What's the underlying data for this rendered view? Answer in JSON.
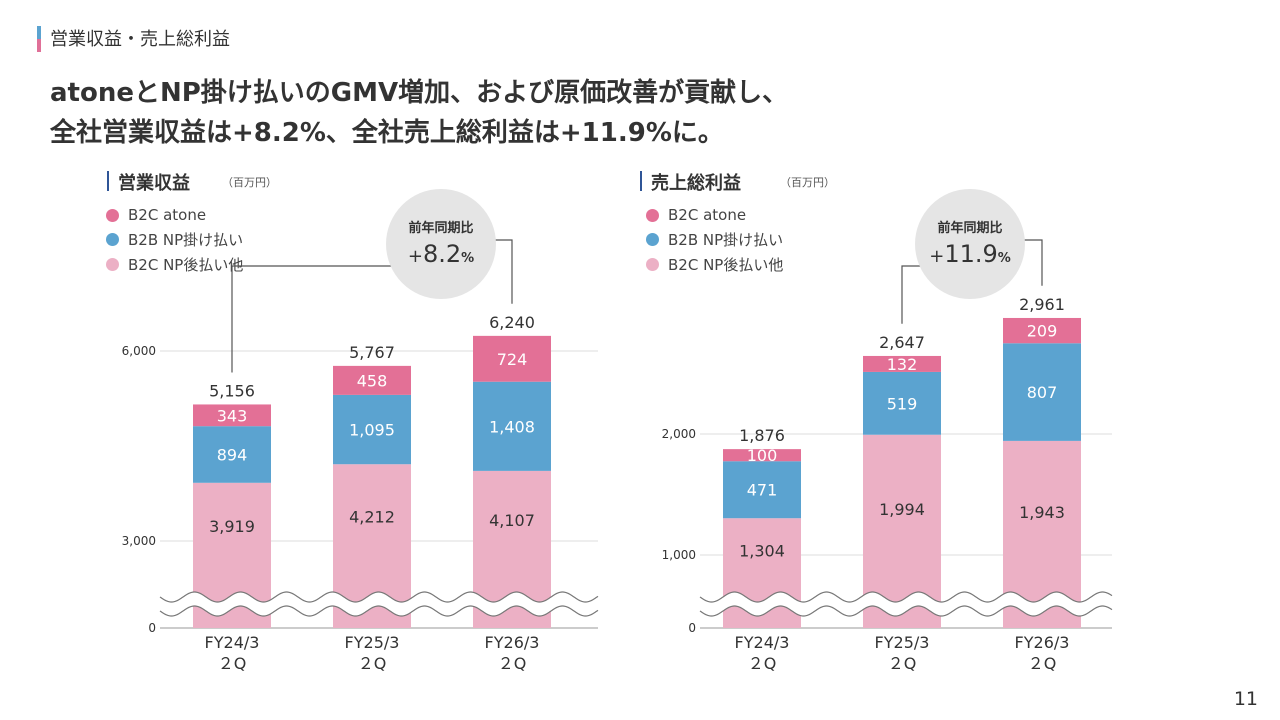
{
  "header": {
    "section_title": "営業収益・売上総利益",
    "headline_line1": "atoneとNP掛け払いのGMV増加、および原価改善が貢献し、",
    "headline_line2": "全社営業収益は+8.2%、全社売上総利益は+11.9%に。"
  },
  "page_number": "11",
  "colors": {
    "atone": "#e37096",
    "np_b2b": "#5ba3d0",
    "np_b2c": "#ecb0c5",
    "title_bar": "#2f5597"
  },
  "chart_data": [
    {
      "type": "bar",
      "stacked": true,
      "title": "営業収益",
      "unit": "（百万円）",
      "categories": [
        [
          "FY24/3",
          "２Q"
        ],
        [
          "FY25/3",
          "２Q"
        ],
        [
          "FY26/3",
          "２Q"
        ]
      ],
      "series": [
        {
          "name": "B2C NP後払い他",
          "values": [
            3919,
            4212,
            4107
          ],
          "labels": [
            "3,919",
            "4,212",
            "4,107"
          ]
        },
        {
          "name": "B2B NP掛け払い",
          "values": [
            894,
            1095,
            1408
          ],
          "labels": [
            "894",
            "1,095",
            "1,408"
          ]
        },
        {
          "name": "B2C atone",
          "values": [
            343,
            458,
            724
          ],
          "labels": [
            "343",
            "458",
            "724"
          ]
        }
      ],
      "totals": [
        5156,
        5767,
        6240
      ],
      "total_labels": [
        "5,156",
        "5,767",
        "6,240"
      ],
      "legend": [
        "B2C atone",
        "B2B NP掛け払い",
        "B2C NP後払い他"
      ],
      "y_ticks": [
        0,
        3000,
        6000
      ],
      "y_tick_labels": [
        "0",
        "3,000",
        "6,000"
      ],
      "axis_break": true,
      "growth": {
        "label": "前年同期比",
        "sign": "+",
        "value": "8.2",
        "unit": "%"
      }
    },
    {
      "type": "bar",
      "stacked": true,
      "title": "売上総利益",
      "unit": "（百万円）",
      "categories": [
        [
          "FY24/3",
          "２Q"
        ],
        [
          "FY25/3",
          "２Q"
        ],
        [
          "FY26/3",
          "２Q"
        ]
      ],
      "series": [
        {
          "name": "B2C NP後払い他",
          "values": [
            1304,
            1994,
            1943
          ],
          "labels": [
            "1,304",
            "1,994",
            "1,943"
          ]
        },
        {
          "name": "B2B NP掛け払い",
          "values": [
            471,
            519,
            807
          ],
          "labels": [
            "471",
            "519",
            "807"
          ]
        },
        {
          "name": "B2C atone",
          "values": [
            100,
            132,
            209
          ],
          "labels": [
            "100",
            "132",
            "209"
          ]
        }
      ],
      "totals": [
        1876,
        2647,
        2961
      ],
      "total_labels": [
        "1,876",
        "2,647",
        "2,961"
      ],
      "legend": [
        "B2C atone",
        "B2B NP掛け払い",
        "B2C NP後払い他"
      ],
      "y_ticks": [
        0,
        1000,
        2000
      ],
      "y_tick_labels": [
        "0",
        "1,000",
        "2,000"
      ],
      "axis_break": true,
      "growth": {
        "label": "前年同期比",
        "sign": "+",
        "value": "11.9",
        "unit": "%"
      }
    }
  ]
}
